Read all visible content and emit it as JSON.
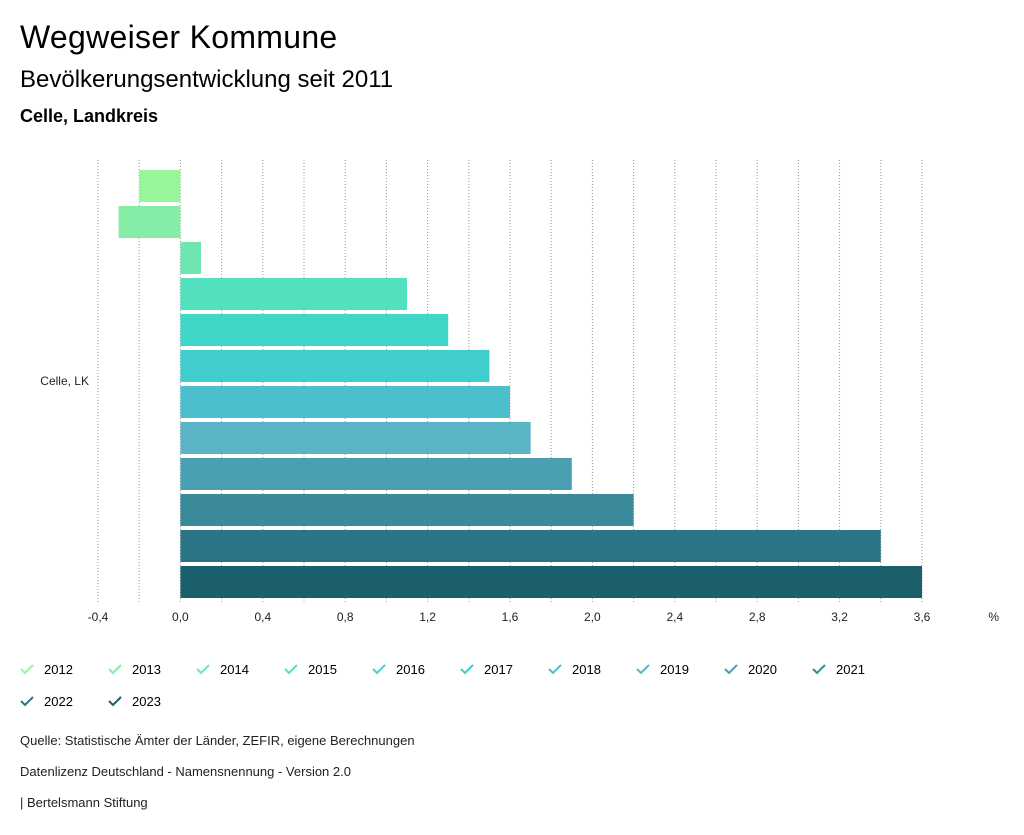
{
  "header": {
    "title": "Wegweiser Kommune",
    "subtitle": "Bevölkerungsentwicklung seit 2011",
    "region": "Celle, Landkreis"
  },
  "chart_data": {
    "type": "bar",
    "orientation": "horizontal",
    "category": "Celle, LK",
    "unit": "%",
    "xlim": [
      -0.4,
      3.6
    ],
    "xticks": [
      "-0,4",
      "0,0",
      "0,4",
      "0,8",
      "1,2",
      "1,6",
      "2,0",
      "2,4",
      "2,8",
      "3,2",
      "3,6"
    ],
    "grid": true,
    "series": [
      {
        "name": "2012",
        "value": -0.2,
        "color": "#97f59a"
      },
      {
        "name": "2013",
        "value": -0.3,
        "color": "#86eda6"
      },
      {
        "name": "2014",
        "value": 0.1,
        "color": "#6ee6b2"
      },
      {
        "name": "2015",
        "value": 1.1,
        "color": "#52e0bf"
      },
      {
        "name": "2016",
        "value": 1.3,
        "color": "#40d6c8"
      },
      {
        "name": "2017",
        "value": 1.5,
        "color": "#3fcdcd"
      },
      {
        "name": "2018",
        "value": 1.6,
        "color": "#4cbfcd"
      },
      {
        "name": "2019",
        "value": 1.7,
        "color": "#5ab4c6"
      },
      {
        "name": "2020",
        "value": 1.9,
        "color": "#4a9fb2"
      },
      {
        "name": "2021",
        "value": 2.2,
        "color": "#3b8a9c"
      },
      {
        "name": "2022",
        "value": 3.4,
        "color": "#2c7586"
      },
      {
        "name": "2023",
        "value": 3.6,
        "color": "#1b5e6c"
      }
    ]
  },
  "footer": {
    "source": "Quelle: Statistische Ämter der Länder, ZEFIR, eigene Berechnungen",
    "license": "Datenlizenz Deutschland - Namensnennung - Version 2.0",
    "publisher": "| Bertelsmann Stiftung"
  }
}
